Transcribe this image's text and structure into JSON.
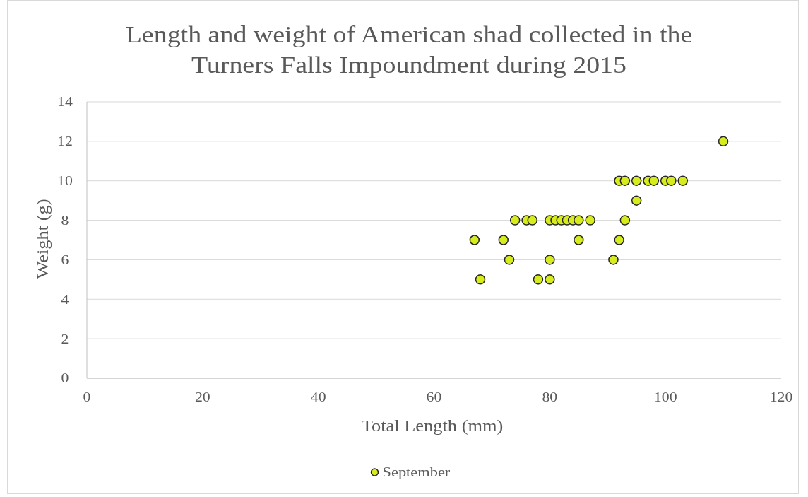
{
  "chart_data": {
    "type": "scatter",
    "title": "Length and weight of American shad collected in the Turners Falls Impoundment during 2015",
    "xlabel": "Total Length (mm)",
    "ylabel": "Weight (g)",
    "xlim": [
      0,
      120
    ],
    "xticks": [
      0,
      20,
      40,
      60,
      80,
      100,
      120
    ],
    "ylim": [
      0,
      14
    ],
    "yticks": [
      0,
      2,
      4,
      6,
      8,
      10,
      12,
      14
    ],
    "grid": "y",
    "legend": "bottom",
    "marker": "circle",
    "series": [
      {
        "name": "September",
        "color": "#d6ec1c",
        "x": [
          67,
          68,
          72,
          73,
          74,
          76,
          77,
          78,
          80,
          80,
          80,
          81,
          82,
          83,
          84,
          85,
          85,
          87,
          91,
          92,
          93,
          92,
          93,
          95,
          95,
          97,
          98,
          100,
          101,
          103,
          110
        ],
        "values": [
          7,
          5,
          7,
          6,
          8,
          8,
          8,
          5,
          5,
          6,
          8,
          8,
          8,
          8,
          8,
          8,
          7,
          8,
          6,
          7,
          8,
          10,
          10,
          10,
          9,
          10,
          10,
          10,
          10,
          10,
          12
        ]
      }
    ]
  }
}
